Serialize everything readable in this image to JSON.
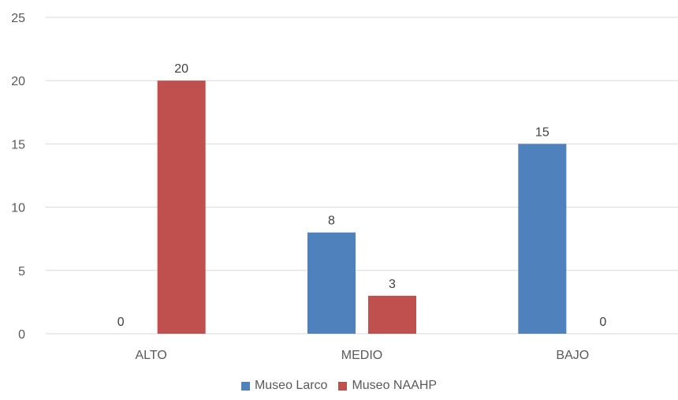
{
  "chart_data": {
    "type": "bar",
    "categories": [
      "ALTO",
      "MEDIO",
      "BAJO"
    ],
    "series": [
      {
        "name": "Museo Larco",
        "values": [
          0,
          8,
          15
        ],
        "color": "#4F81BD"
      },
      {
        "name": "Museo NAAHP",
        "values": [
          20,
          3,
          0
        ],
        "color": "#C0504D"
      }
    ],
    "ylim": [
      0,
      25
    ],
    "yticks": [
      0,
      5,
      10,
      15,
      20,
      25
    ],
    "grid": true,
    "legend": "bottom"
  }
}
